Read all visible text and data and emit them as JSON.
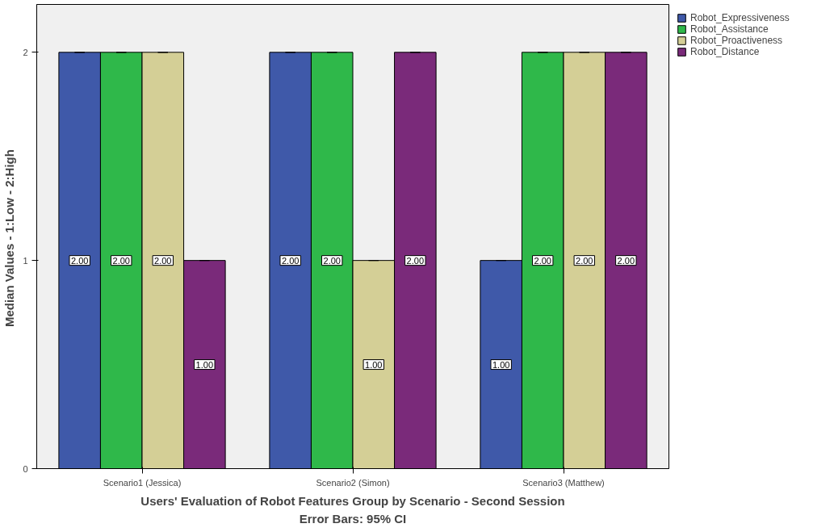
{
  "chart_data": {
    "type": "bar",
    "xlabel": "Users' Evaluation of Robot Features Group by Scenario - Second Session",
    "ylabel": "Median Values -  1:Low - 2:High",
    "annotations": [
      "Error Bars: 95% CI"
    ],
    "categories": [
      "Scenario1 (Jessica)",
      "Scenario2 (Simon)",
      "Scenario3 (Matthew)"
    ],
    "series": [
      {
        "name": "Robot_Expressiveness",
        "color": "#3f59a9",
        "values": [
          2,
          2,
          1
        ],
        "errors": [
          0,
          0,
          0
        ],
        "value_labels": [
          "2.00",
          "2.00",
          "1.00"
        ]
      },
      {
        "name": "Robot_Assistance",
        "color": "#2fb84a",
        "values": [
          2,
          2,
          2
        ],
        "errors": [
          0,
          0,
          0
        ],
        "value_labels": [
          "2.00",
          "2.00",
          "2.00"
        ]
      },
      {
        "name": "Robot_Proactiveness",
        "color": "#d4cf96",
        "values": [
          2,
          1,
          2
        ],
        "errors": [
          0,
          0,
          0
        ],
        "value_labels": [
          "2.00",
          "1.00",
          "2.00"
        ]
      },
      {
        "name": "Robot_Distance",
        "color": "#7a2a7a",
        "values": [
          1,
          2,
          2
        ],
        "errors": [
          0,
          0,
          0
        ],
        "value_labels": [
          "1.00",
          "2.00",
          "2.00"
        ]
      }
    ],
    "ylim": [
      0,
      2.23
    ],
    "yticks": [
      0,
      1,
      2
    ],
    "grid": false,
    "legend": "top right"
  }
}
